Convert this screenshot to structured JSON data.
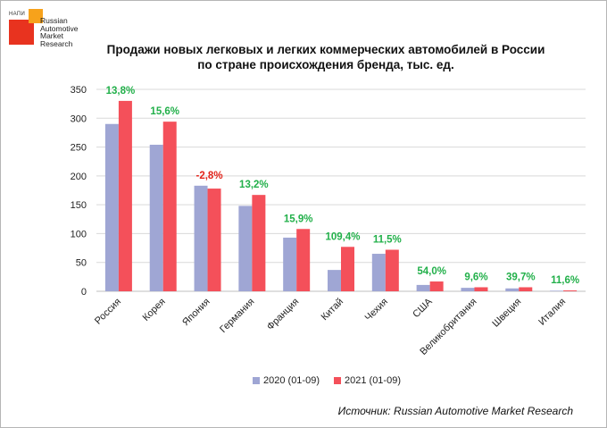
{
  "logo": {
    "abbr": "НАПИ",
    "line1": "Russian",
    "line2": "Automotive",
    "line3": "Market",
    "line4": "Research"
  },
  "title_line1": "Продажи новых легковых и легких коммерческих автомобилей в России",
  "title_line2": "по стране происхождения бренда, тыс. ед.",
  "source": "Источник: Russian Automotive Market Research",
  "colors": {
    "s2020": "#9fa6d4",
    "s2021": "#f4505a",
    "pos": "#22b04a",
    "neg": "#e2231a",
    "grid": "#d9d9d9"
  },
  "chart_data": {
    "type": "bar",
    "categories": [
      "Россия",
      "Корея",
      "Япония",
      "Германия",
      "Франция",
      "Китай",
      "Чехия",
      "США",
      "Великобритания",
      "Швеция",
      "Италия"
    ],
    "series": [
      {
        "name": "2020 (01-09)",
        "values": [
          290,
          254,
          183,
          148,
          93,
          37,
          65,
          11,
          6,
          5,
          1
        ]
      },
      {
        "name": "2021 (01-09)",
        "values": [
          330,
          294,
          178,
          167,
          108,
          77,
          72,
          17,
          7,
          7,
          1.5
        ]
      }
    ],
    "change_labels": [
      "13,8%",
      "15,6%",
      "-2,8%",
      "13,2%",
      "15,9%",
      "109,4%",
      "11,5%",
      "54,0%",
      "9,6%",
      "39,7%",
      "11,6%"
    ],
    "change_positive": [
      true,
      true,
      false,
      true,
      true,
      true,
      true,
      true,
      true,
      true,
      true
    ],
    "ylim": [
      0,
      350
    ],
    "yticks": [
      "0",
      "50",
      "100",
      "150",
      "200",
      "250",
      "300",
      "350"
    ],
    "grid": true,
    "legend_position": "bottom"
  }
}
